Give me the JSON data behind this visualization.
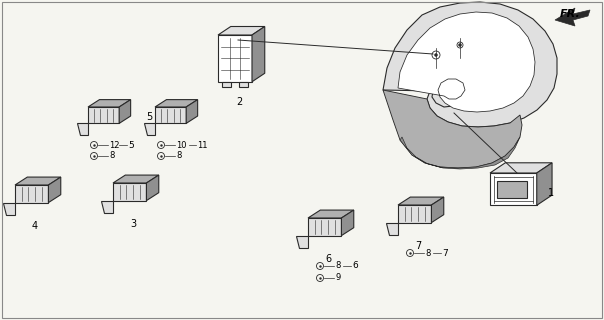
{
  "bg_color": "#f5f5f0",
  "line_color": "#2a2a2a",
  "text_color": "#000000",
  "fig_width": 6.04,
  "fig_height": 3.2,
  "dpi": 100,
  "fr_label": "FR.",
  "border_color": "#888888",
  "gray_fill": "#c8c8c8",
  "light_gray": "#e0e0e0",
  "dark_gray": "#909090",
  "mid_gray": "#b0b0b0"
}
